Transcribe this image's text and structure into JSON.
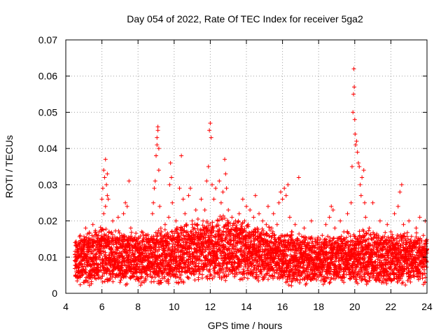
{
  "chart_data": {
    "type": "scatter",
    "title": "Day 054 of 2022, Rate Of TEC Index for receiver 5ga2",
    "xlabel": "GPS time / hours",
    "ylabel": "ROTI / TECUs",
    "xlim": [
      4,
      24
    ],
    "ylim": [
      0,
      0.07
    ],
    "xticks": [
      4,
      6,
      8,
      10,
      12,
      14,
      16,
      18,
      20,
      22,
      24
    ],
    "yticks": [
      0,
      0.01,
      0.02,
      0.03,
      0.04,
      0.05,
      0.06,
      0.07
    ],
    "xtick_labels": [
      "4",
      "6",
      "8",
      "10",
      "12",
      "14",
      "16",
      "18",
      "20",
      "22",
      "24"
    ],
    "ytick_labels": [
      "0",
      "0.01",
      "0.02",
      "0.03",
      "0.04",
      "0.05",
      "0.06",
      "0.07"
    ],
    "grid": true,
    "marker": "plus",
    "color": "#ff0000",
    "series": [
      {
        "name": "ROTI",
        "points": [
          [
            4.5,
            0.009
          ],
          [
            4.6,
            0.013
          ],
          [
            4.7,
            0.007
          ],
          [
            4.8,
            0.016
          ],
          [
            4.9,
            0.005
          ],
          [
            5.0,
            0.011
          ],
          [
            5.1,
            0.018
          ],
          [
            5.2,
            0.008
          ],
          [
            5.3,
            0.013
          ],
          [
            5.4,
            0.006
          ],
          [
            5.5,
            0.019
          ],
          [
            5.6,
            0.01
          ],
          [
            5.7,
            0.014
          ],
          [
            5.8,
            0.007
          ],
          [
            5.9,
            0.012
          ],
          [
            6.0,
            0.026
          ],
          [
            6.05,
            0.029
          ],
          [
            6.1,
            0.034
          ],
          [
            6.15,
            0.032
          ],
          [
            6.2,
            0.037
          ],
          [
            6.25,
            0.03
          ],
          [
            6.3,
            0.033
          ],
          [
            6.35,
            0.026
          ],
          [
            6.1,
            0.022
          ],
          [
            6.2,
            0.024
          ],
          [
            6.3,
            0.027
          ],
          [
            6.4,
            0.017
          ],
          [
            6.5,
            0.012
          ],
          [
            6.6,
            0.02
          ],
          [
            6.7,
            0.009
          ],
          [
            6.8,
            0.014
          ],
          [
            6.9,
            0.021
          ],
          [
            7.0,
            0.01
          ],
          [
            7.1,
            0.016
          ],
          [
            7.2,
            0.022
          ],
          [
            7.3,
            0.025
          ],
          [
            7.4,
            0.024
          ],
          [
            7.5,
            0.031
          ],
          [
            7.6,
            0.018
          ],
          [
            7.7,
            0.011
          ],
          [
            7.8,
            0.015
          ],
          [
            7.9,
            0.008
          ],
          [
            8.0,
            0.012
          ],
          [
            8.2,
            0.017
          ],
          [
            8.4,
            0.01
          ],
          [
            8.6,
            0.014
          ],
          [
            8.8,
            0.022
          ],
          [
            8.85,
            0.025
          ],
          [
            8.9,
            0.029
          ],
          [
            8.95,
            0.031
          ],
          [
            9.0,
            0.038
          ],
          [
            9.05,
            0.043
          ],
          [
            9.1,
            0.046
          ],
          [
            9.15,
            0.04
          ],
          [
            9.05,
            0.041
          ],
          [
            9.1,
            0.045
          ],
          [
            9.15,
            0.034
          ],
          [
            9.2,
            0.024
          ],
          [
            9.3,
            0.017
          ],
          [
            9.4,
            0.012
          ],
          [
            9.5,
            0.019
          ],
          [
            9.6,
            0.013
          ],
          [
            9.7,
            0.021
          ],
          [
            9.75,
            0.03
          ],
          [
            9.8,
            0.036
          ],
          [
            9.85,
            0.032
          ],
          [
            9.9,
            0.025
          ],
          [
            10.0,
            0.015
          ],
          [
            10.1,
            0.02
          ],
          [
            10.2,
            0.018
          ],
          [
            10.3,
            0.029
          ],
          [
            10.4,
            0.038
          ],
          [
            10.5,
            0.026
          ],
          [
            10.6,
            0.022
          ],
          [
            10.7,
            0.019
          ],
          [
            10.8,
            0.027
          ],
          [
            10.9,
            0.029
          ],
          [
            11.0,
            0.02
          ],
          [
            11.1,
            0.016
          ],
          [
            11.2,
            0.023
          ],
          [
            11.3,
            0.019
          ],
          [
            11.4,
            0.012
          ],
          [
            11.5,
            0.026
          ],
          [
            11.6,
            0.02
          ],
          [
            11.7,
            0.023
          ],
          [
            11.8,
            0.031
          ],
          [
            11.9,
            0.035
          ],
          [
            11.95,
            0.045
          ],
          [
            12.0,
            0.047
          ],
          [
            12.05,
            0.043
          ],
          [
            12.1,
            0.03
          ],
          [
            12.2,
            0.026
          ],
          [
            12.3,
            0.029
          ],
          [
            12.4,
            0.02
          ],
          [
            12.5,
            0.031
          ],
          [
            12.6,
            0.025
          ],
          [
            12.7,
            0.028
          ],
          [
            12.8,
            0.037
          ],
          [
            12.85,
            0.033
          ],
          [
            12.9,
            0.029
          ],
          [
            13.0,
            0.023
          ],
          [
            13.1,
            0.017
          ],
          [
            13.2,
            0.021
          ],
          [
            13.3,
            0.016
          ],
          [
            13.4,
            0.02
          ],
          [
            13.5,
            0.014
          ],
          [
            13.6,
            0.022
          ],
          [
            13.7,
            0.018
          ],
          [
            13.8,
            0.026
          ],
          [
            13.9,
            0.02
          ],
          [
            14.0,
            0.024
          ],
          [
            14.1,
            0.019
          ],
          [
            14.2,
            0.023
          ],
          [
            14.3,
            0.017
          ],
          [
            14.4,
            0.021
          ],
          [
            14.5,
            0.027
          ],
          [
            14.6,
            0.018
          ],
          [
            14.7,
            0.022
          ],
          [
            14.8,
            0.016
          ],
          [
            14.9,
            0.02
          ],
          [
            15.0,
            0.015
          ],
          [
            15.1,
            0.019
          ],
          [
            15.2,
            0.024
          ],
          [
            15.3,
            0.013
          ],
          [
            15.4,
            0.018
          ],
          [
            15.5,
            0.022
          ],
          [
            15.6,
            0.015
          ],
          [
            15.7,
            0.019
          ],
          [
            15.8,
            0.025
          ],
          [
            15.9,
            0.028
          ],
          [
            16.0,
            0.026
          ],
          [
            16.1,
            0.029
          ],
          [
            16.2,
            0.027
          ],
          [
            16.3,
            0.03
          ],
          [
            16.4,
            0.021
          ],
          [
            16.5,
            0.017
          ],
          [
            16.6,
            0.013
          ],
          [
            16.7,
            0.019
          ],
          [
            16.8,
            0.015
          ],
          [
            16.9,
            0.032
          ],
          [
            17.0,
            0.011
          ],
          [
            17.2,
            0.018
          ],
          [
            17.4,
            0.014
          ],
          [
            17.6,
            0.02
          ],
          [
            17.8,
            0.015
          ],
          [
            18.0,
            0.011
          ],
          [
            18.2,
            0.016
          ],
          [
            18.4,
            0.019
          ],
          [
            18.6,
            0.021
          ],
          [
            18.7,
            0.024
          ],
          [
            18.8,
            0.023
          ],
          [
            18.9,
            0.018
          ],
          [
            19.0,
            0.014
          ],
          [
            19.2,
            0.02
          ],
          [
            19.4,
            0.017
          ],
          [
            19.6,
            0.022
          ],
          [
            19.8,
            0.025
          ],
          [
            19.85,
            0.035
          ],
          [
            19.9,
            0.05
          ],
          [
            19.93,
            0.055
          ],
          [
            19.95,
            0.062
          ],
          [
            19.97,
            0.057
          ],
          [
            20.0,
            0.048
          ],
          [
            20.02,
            0.044
          ],
          [
            20.05,
            0.041
          ],
          [
            20.1,
            0.042
          ],
          [
            20.15,
            0.039
          ],
          [
            20.2,
            0.036
          ],
          [
            20.25,
            0.035
          ],
          [
            20.3,
            0.03
          ],
          [
            20.35,
            0.027
          ],
          [
            20.4,
            0.032
          ],
          [
            20.5,
            0.034
          ],
          [
            20.55,
            0.025
          ],
          [
            20.6,
            0.021
          ],
          [
            20.8,
            0.018
          ],
          [
            21.0,
            0.025
          ],
          [
            21.2,
            0.016
          ],
          [
            21.4,
            0.02
          ],
          [
            21.6,
            0.014
          ],
          [
            21.8,
            0.019
          ],
          [
            22.0,
            0.017
          ],
          [
            22.2,
            0.022
          ],
          [
            22.4,
            0.024
          ],
          [
            22.5,
            0.028
          ],
          [
            22.6,
            0.03
          ],
          [
            22.7,
            0.019
          ],
          [
            22.8,
            0.015
          ],
          [
            23.0,
            0.02
          ],
          [
            23.2,
            0.013
          ],
          [
            23.4,
            0.018
          ],
          [
            23.6,
            0.021
          ],
          [
            23.8,
            0.016
          ],
          [
            23.9,
            0.02
          ],
          [
            23.95,
            0.012
          ]
        ]
      }
    ],
    "noise_band": {
      "x_start": 4.5,
      "x_end": 24,
      "step": 0.008,
      "seed": 54,
      "segments": [
        [
          4.5,
          0.002,
          0.016
        ],
        [
          6.0,
          0.002,
          0.019
        ],
        [
          8.0,
          0.002,
          0.017
        ],
        [
          10.0,
          0.002,
          0.019
        ],
        [
          11.5,
          0.003,
          0.021
        ],
        [
          13.0,
          0.003,
          0.022
        ],
        [
          15.0,
          0.003,
          0.019
        ],
        [
          16.0,
          0.002,
          0.018
        ],
        [
          18.0,
          0.002,
          0.016
        ],
        [
          20.5,
          0.002,
          0.018
        ],
        [
          22.0,
          0.002,
          0.017
        ],
        [
          24.0,
          0.002,
          0.017
        ]
      ]
    }
  }
}
